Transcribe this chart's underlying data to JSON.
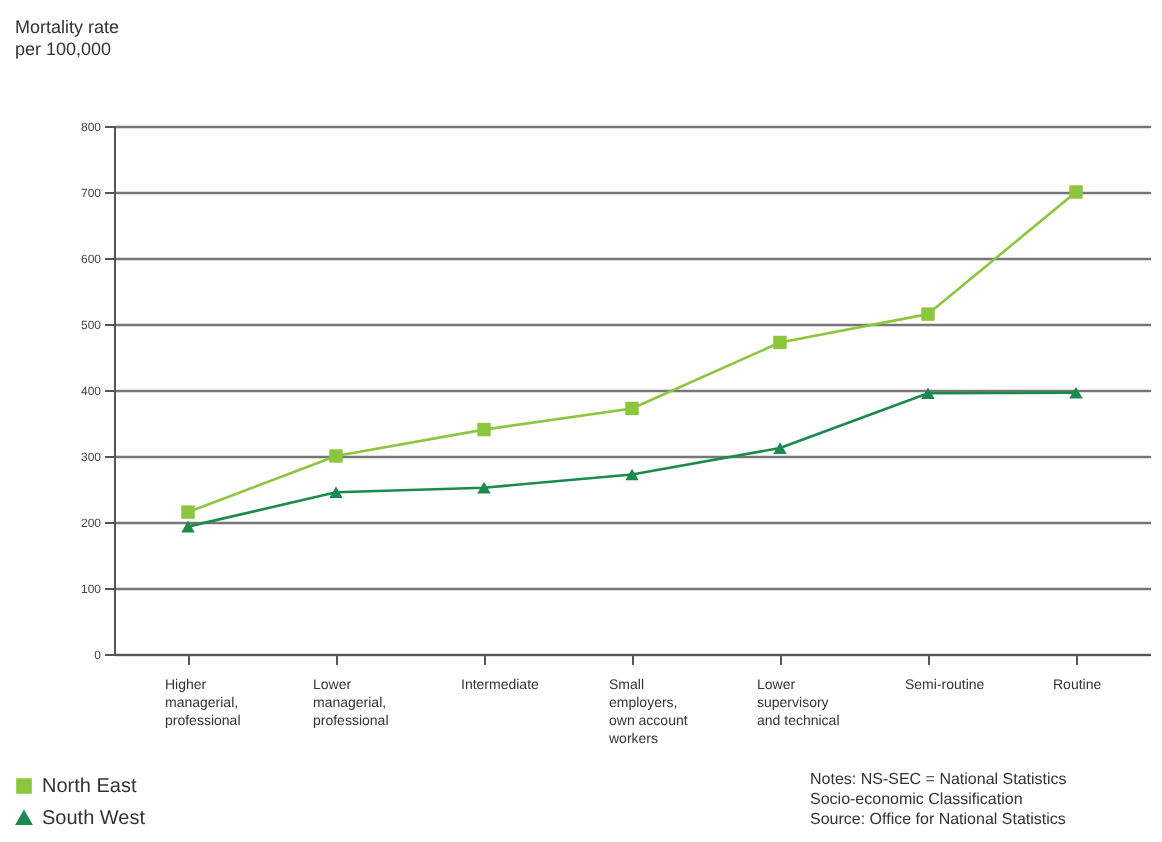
{
  "chart_data": {
    "type": "line",
    "ylabel": "Mortality rate\nper 100,000",
    "categories": [
      "Higher\nmanagerial,\nprofessional",
      "Lower\nmanagerial,\nprofessional",
      "Intermediate",
      "Small\nemployers,\nown account\nworkers",
      "Lower\nsupervisory\nand technical",
      "Semi-routine",
      "Routine"
    ],
    "series": [
      {
        "name": "North East",
        "color": "#8cc63e",
        "marker": "square",
        "values": [
          215,
          300,
          340,
          372,
          472,
          515,
          700
        ]
      },
      {
        "name": "South West",
        "color": "#1b8a4c",
        "marker": "triangle",
        "values": [
          193,
          245,
          252,
          272,
          312,
          395,
          396
        ]
      }
    ],
    "ylim": [
      0,
      800
    ],
    "yticks": [
      0,
      100,
      200,
      300,
      400,
      500,
      600,
      700,
      800
    ],
    "grid": "y",
    "legend": "bottom left",
    "annotations": [
      "Notes: NS-SEC = National Statistics",
      "Socio-economic Classification",
      "Source: Office for National Statistics"
    ]
  }
}
